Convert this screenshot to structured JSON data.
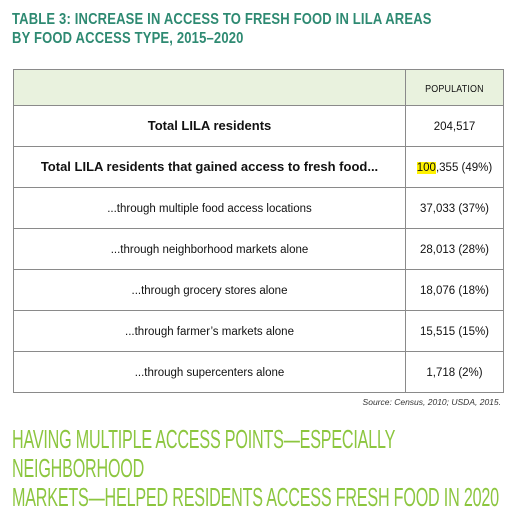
{
  "title": {
    "line1": "TABLE 3: INCREASE IN ACCESS TO FRESH FOOD IN LILA AREAS",
    "line2": "BY FOOD ACCESS TYPE, 2015–2020"
  },
  "table": {
    "header": "POPULATION",
    "rows": [
      {
        "label": "Total LILA residents",
        "value": "204,517"
      },
      {
        "label": "Total LILA residents that gained access to fresh food...",
        "value_highlight": "100",
        "value_rest": ",355 (49%)"
      },
      {
        "label": "...through multiple food access locations",
        "value": "37,033 (37%)"
      },
      {
        "label": "...through neighborhood markets alone",
        "value": "28,013 (28%)"
      },
      {
        "label": "...through grocery stores alone",
        "value": "18,076 (18%)"
      },
      {
        "label": "...through farmer’s markets alone",
        "value": "15,515 (15%)"
      },
      {
        "label": "...through supercenters alone",
        "value": "1,718 (2%)"
      }
    ]
  },
  "source": "Source: Census, 2010; USDA, 2015.",
  "headline": {
    "line1": "HAVING MULTIPLE ACCESS POINTS—ESPECIALLY NEIGHBORHOOD",
    "line2": "MARKETS—HELPED RESIDENTS ACCESS FRESH FOOD IN 2020"
  },
  "colors": {
    "title": "#2e8a72",
    "headline": "#8cc63f",
    "header_fill": "#e9f2de",
    "highlight": "#fff200"
  }
}
